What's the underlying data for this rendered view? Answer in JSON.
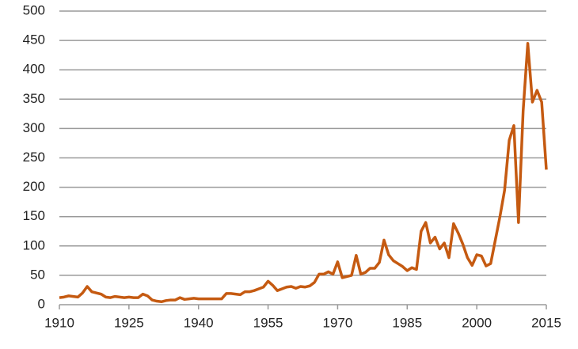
{
  "chart_data": {
    "type": "line",
    "x": [
      1910,
      1911,
      1912,
      1913,
      1914,
      1915,
      1916,
      1917,
      1918,
      1919,
      1920,
      1921,
      1922,
      1923,
      1924,
      1925,
      1926,
      1927,
      1928,
      1929,
      1930,
      1931,
      1932,
      1933,
      1934,
      1935,
      1936,
      1937,
      1938,
      1939,
      1940,
      1941,
      1942,
      1943,
      1944,
      1945,
      1946,
      1947,
      1948,
      1949,
      1950,
      1951,
      1952,
      1953,
      1954,
      1955,
      1956,
      1957,
      1958,
      1959,
      1960,
      1961,
      1962,
      1963,
      1964,
      1965,
      1966,
      1967,
      1968,
      1969,
      1970,
      1971,
      1972,
      1973,
      1974,
      1975,
      1976,
      1977,
      1978,
      1979,
      1980,
      1981,
      1982,
      1983,
      1984,
      1985,
      1986,
      1987,
      1988,
      1989,
      1990,
      1991,
      1992,
      1993,
      1994,
      1995,
      1996,
      1997,
      1998,
      1999,
      2000,
      2001,
      2002,
      2003,
      2004,
      2005,
      2006,
      2007,
      2008,
      2009,
      2010,
      2011,
      2012,
      2013,
      2014,
      2015
    ],
    "values": [
      12,
      13,
      15,
      14,
      13,
      20,
      31,
      22,
      20,
      18,
      13,
      12,
      14,
      13,
      12,
      13,
      12,
      12,
      18,
      15,
      8,
      6,
      5,
      7,
      8,
      8,
      12,
      9,
      10,
      11,
      10,
      10,
      10,
      10,
      10,
      10,
      19,
      19,
      18,
      17,
      22,
      22,
      24,
      27,
      30,
      40,
      33,
      24,
      27,
      30,
      31,
      28,
      31,
      30,
      32,
      38,
      52,
      52,
      56,
      52,
      73,
      46,
      48,
      50,
      84,
      52,
      55,
      62,
      62,
      72,
      110,
      85,
      75,
      70,
      65,
      58,
      63,
      60,
      125,
      140,
      105,
      115,
      95,
      105,
      80,
      138,
      122,
      103,
      80,
      67,
      85,
      83,
      66,
      70,
      110,
      150,
      195,
      280,
      305,
      140,
      330,
      445,
      345,
      365,
      345,
      230
    ],
    "color": "#c55a11",
    "xlim": [
      1910,
      2015
    ],
    "xticks": [
      1910,
      1925,
      1940,
      1955,
      1970,
      1985,
      2000,
      2015
    ],
    "ylim": [
      0,
      500
    ],
    "yticks": [
      0,
      50,
      100,
      150,
      200,
      250,
      300,
      350,
      400,
      450,
      500
    ],
    "grid": true
  }
}
